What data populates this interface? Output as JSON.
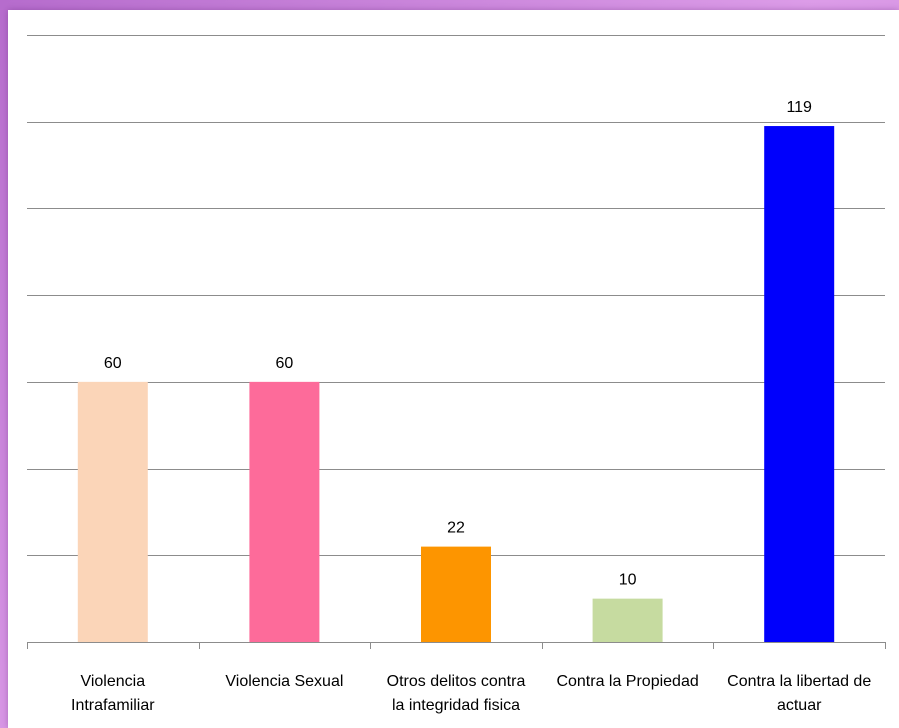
{
  "chart_data": {
    "type": "bar",
    "title": "",
    "xlabel": "",
    "ylabel": "",
    "ylim": [
      0,
      140
    ],
    "grid": true,
    "y_tick_labels_visible": false,
    "categories": [
      [
        "Violencia",
        "Intrafamiliar"
      ],
      [
        "Violencia Sexual"
      ],
      [
        "Otros delitos contra",
        "la integridad fisica"
      ],
      [
        "Contra la Propiedad"
      ],
      [
        "Contra la libertad de",
        "actuar"
      ]
    ],
    "values": [
      60,
      60,
      22,
      10,
      119
    ],
    "data_labels": [
      "60",
      "60",
      "22",
      "10",
      "119"
    ],
    "colors": [
      "#fbd5b8",
      "#fd6b9a",
      "#fd9500",
      "#c6dba0",
      "#0000fc"
    ]
  }
}
